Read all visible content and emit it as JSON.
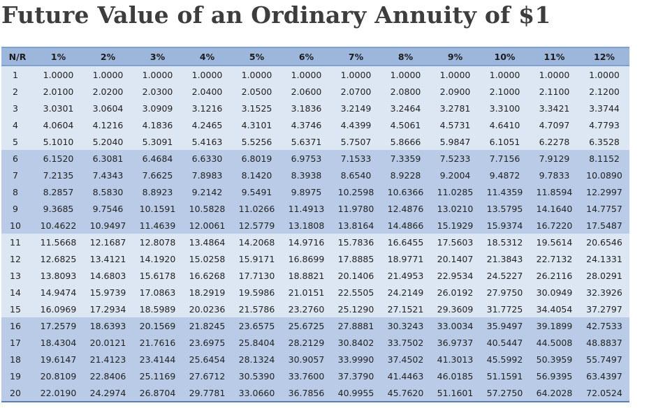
{
  "title": "Future Value of an Ordinary Annuity of $1",
  "table": {
    "headers": [
      "N/R",
      "1%",
      "2%",
      "3%",
      "4%",
      "5%",
      "6%",
      "7%",
      "8%",
      "9%",
      "10%",
      "11%",
      "12%"
    ],
    "rows": [
      [
        "1",
        "1.0000",
        "1.0000",
        "1.0000",
        "1.0000",
        "1.0000",
        "1.0000",
        "1.0000",
        "1.0000",
        "1.0000",
        "1.0000",
        "1.0000",
        "1.0000"
      ],
      [
        "2",
        "2.0100",
        "2.0200",
        "2.0300",
        "2.0400",
        "2.0500",
        "2.0600",
        "2.0700",
        "2.0800",
        "2.0900",
        "2.1000",
        "2.1100",
        "2.1200"
      ],
      [
        "3",
        "3.0301",
        "3.0604",
        "3.0909",
        "3.1216",
        "3.1525",
        "3.1836",
        "3.2149",
        "3.2464",
        "3.2781",
        "3.3100",
        "3.3421",
        "3.3744"
      ],
      [
        "4",
        "4.0604",
        "4.1216",
        "4.1836",
        "4.2465",
        "4.3101",
        "4.3746",
        "4.4399",
        "4.5061",
        "4.5731",
        "4.6410",
        "4.7097",
        "4.7793"
      ],
      [
        "5",
        "5.1010",
        "5.2040",
        "5.3091",
        "5.4163",
        "5.5256",
        "5.6371",
        "5.7507",
        "5.8666",
        "5.9847",
        "6.1051",
        "6.2278",
        "6.3528"
      ],
      [
        "6",
        "6.1520",
        "6.3081",
        "6.4684",
        "6.6330",
        "6.8019",
        "6.9753",
        "7.1533",
        "7.3359",
        "7.5233",
        "7.7156",
        "7.9129",
        "8.1152"
      ],
      [
        "7",
        "7.2135",
        "7.4343",
        "7.6625",
        "7.8983",
        "8.1420",
        "8.3938",
        "8.6540",
        "8.9228",
        "9.2004",
        "9.4872",
        "9.7833",
        "10.0890"
      ],
      [
        "8",
        "8.2857",
        "8.5830",
        "8.8923",
        "9.2142",
        "9.5491",
        "9.8975",
        "10.2598",
        "10.6366",
        "11.0285",
        "11.4359",
        "11.8594",
        "12.2997"
      ],
      [
        "9",
        "9.3685",
        "9.7546",
        "10.1591",
        "10.5828",
        "11.0266",
        "11.4913",
        "11.9780",
        "12.4876",
        "13.0210",
        "13.5795",
        "14.1640",
        "14.7757"
      ],
      [
        "10",
        "10.4622",
        "10.9497",
        "11.4639",
        "12.0061",
        "12.5779",
        "13.1808",
        "13.8164",
        "14.4866",
        "15.1929",
        "15.9374",
        "16.7220",
        "17.5487"
      ],
      [
        "11",
        "11.5668",
        "12.1687",
        "12.8078",
        "13.4864",
        "14.2068",
        "14.9716",
        "15.7836",
        "16.6455",
        "17.5603",
        "18.5312",
        "19.5614",
        "20.6546"
      ],
      [
        "12",
        "12.6825",
        "13.4121",
        "14.1920",
        "15.0258",
        "15.9171",
        "16.8699",
        "17.8885",
        "18.9771",
        "20.1407",
        "21.3843",
        "22.7132",
        "24.1331"
      ],
      [
        "13",
        "13.8093",
        "14.6803",
        "15.6178",
        "16.6268",
        "17.7130",
        "18.8821",
        "20.1406",
        "21.4953",
        "22.9534",
        "24.5227",
        "26.2116",
        "28.0291"
      ],
      [
        "14",
        "14.9474",
        "15.9739",
        "17.0863",
        "18.2919",
        "19.5986",
        "21.0151",
        "22.5505",
        "24.2149",
        "26.0192",
        "27.9750",
        "30.0949",
        "32.3926"
      ],
      [
        "15",
        "16.0969",
        "17.2934",
        "18.5989",
        "20.0236",
        "21.5786",
        "23.2760",
        "25.1290",
        "27.1521",
        "29.3609",
        "31.7725",
        "34.4054",
        "37.2797"
      ],
      [
        "16",
        "17.2579",
        "18.6393",
        "20.1569",
        "21.8245",
        "23.6575",
        "25.6725",
        "27.8881",
        "30.3243",
        "33.0034",
        "35.9497",
        "39.1899",
        "42.7533"
      ],
      [
        "17",
        "18.4304",
        "20.0121",
        "21.7616",
        "23.6975",
        "25.8404",
        "28.2129",
        "30.8402",
        "33.7502",
        "36.9737",
        "40.5447",
        "44.5008",
        "48.8837"
      ],
      [
        "18",
        "19.6147",
        "21.4123",
        "23.4144",
        "25.6454",
        "28.1324",
        "30.9057",
        "33.9990",
        "37.4502",
        "41.3013",
        "45.5992",
        "50.3959",
        "55.7497"
      ],
      [
        "19",
        "20.8109",
        "22.8406",
        "25.1169",
        "27.6712",
        "30.5390",
        "33.7600",
        "37.3790",
        "41.4463",
        "46.0185",
        "51.1591",
        "56.9395",
        "63.4397"
      ],
      [
        "20",
        "22.0190",
        "24.2974",
        "26.8704",
        "29.7781",
        "33.0660",
        "36.7856",
        "40.9955",
        "45.7620",
        "51.1601",
        "57.2750",
        "64.2028",
        "72.0524"
      ]
    ]
  }
}
